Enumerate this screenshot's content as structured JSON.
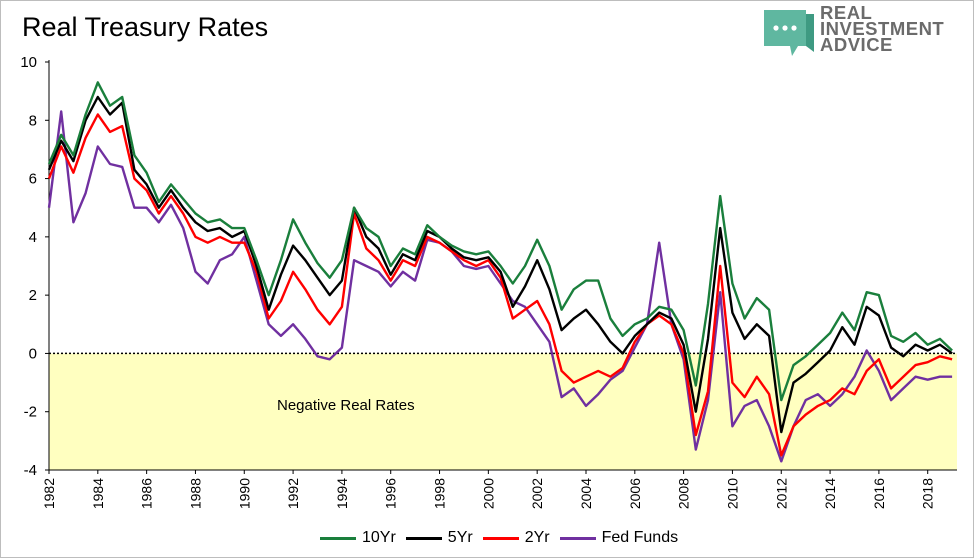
{
  "title": "Real Treasury Rates",
  "logo": {
    "lines": [
      "REAL",
      "INVESTMENT",
      "ADVICE"
    ],
    "icon": "chat-bubble-icon",
    "color": "#5fb7a0"
  },
  "annotation": "Negative Real Rates",
  "colors": {
    "10Yr": "#1a7f3c",
    "5Yr": "#000000",
    "2Yr": "#ff0000",
    "Fed Funds": "#7030a0",
    "negative_region": "#ffffc0"
  },
  "chart_data": {
    "type": "line",
    "title": "Real Treasury Rates",
    "xlabel": "",
    "ylabel": "",
    "xlim": [
      1982,
      2019.2
    ],
    "ylim": [
      -4,
      10
    ],
    "yticks": [
      "10",
      "8",
      "6",
      "4",
      "2",
      "0",
      "-2",
      "-4"
    ],
    "xticks": [
      "1982",
      "1984",
      "1986",
      "1988",
      "1990",
      "1992",
      "1994",
      "1996",
      "1998",
      "2000",
      "2002",
      "2004",
      "2006",
      "2008",
      "2010",
      "2012",
      "2014",
      "2016",
      "2018"
    ],
    "grid": false,
    "legend": "bottom",
    "x": [
      1982,
      1982.5,
      1983,
      1983.5,
      1984,
      1984.5,
      1985,
      1985.5,
      1986,
      1986.5,
      1987,
      1987.5,
      1988,
      1988.5,
      1989,
      1989.5,
      1990,
      1990.5,
      1991,
      1991.5,
      1992,
      1992.5,
      1993,
      1993.5,
      1994,
      1994.5,
      1995,
      1995.5,
      1996,
      1996.5,
      1997,
      1997.5,
      1998,
      1998.5,
      1999,
      1999.5,
      2000,
      2000.5,
      2001,
      2001.5,
      2002,
      2002.5,
      2003,
      2003.5,
      2004,
      2004.5,
      2005,
      2005.5,
      2006,
      2006.5,
      2007,
      2007.5,
      2008,
      2008.5,
      2009,
      2009.5,
      2010,
      2010.5,
      2011,
      2011.5,
      2012,
      2012.5,
      2013,
      2013.5,
      2014,
      2014.5,
      2015,
      2015.5,
      2016,
      2016.5,
      2017,
      2017.5,
      2018,
      2018.5,
      2019
    ],
    "series": [
      {
        "name": "10Yr",
        "values": [
          6.5,
          7.5,
          6.8,
          8.2,
          9.3,
          8.5,
          8.8,
          6.8,
          6.2,
          5.2,
          5.8,
          5.3,
          4.8,
          4.5,
          4.6,
          4.3,
          4.3,
          3.2,
          2.0,
          3.2,
          4.6,
          3.8,
          3.1,
          2.6,
          3.2,
          5.0,
          4.3,
          4.0,
          3.0,
          3.6,
          3.4,
          4.4,
          4.0,
          3.7,
          3.5,
          3.4,
          3.5,
          3.0,
          2.4,
          3.0,
          3.9,
          3.0,
          1.5,
          2.2,
          2.5,
          2.5,
          1.2,
          0.6,
          1.0,
          1.2,
          1.6,
          1.5,
          0.8,
          -1.1,
          1.7,
          5.4,
          2.4,
          1.2,
          1.9,
          1.5,
          -1.6,
          -0.4,
          -0.1,
          0.3,
          0.7,
          1.4,
          0.8,
          2.1,
          2.0,
          0.6,
          0.4,
          0.7,
          0.3,
          0.5,
          0.1
        ]
      },
      {
        "name": "5Yr",
        "values": [
          6.3,
          7.3,
          6.6,
          8.0,
          8.8,
          8.2,
          8.6,
          6.3,
          5.8,
          5.0,
          5.6,
          5.0,
          4.5,
          4.2,
          4.3,
          4.0,
          4.2,
          3.0,
          1.5,
          2.7,
          3.7,
          3.2,
          2.6,
          2.0,
          2.5,
          5.0,
          4.0,
          3.6,
          2.7,
          3.4,
          3.2,
          4.2,
          4.0,
          3.6,
          3.3,
          3.2,
          3.3,
          2.8,
          1.6,
          2.3,
          3.2,
          2.2,
          0.8,
          1.2,
          1.5,
          1.0,
          0.4,
          0.0,
          0.6,
          1.0,
          1.4,
          1.2,
          0.3,
          -2.0,
          0.5,
          4.3,
          1.4,
          0.5,
          1.0,
          0.6,
          -2.7,
          -1.0,
          -0.7,
          -0.3,
          0.1,
          0.9,
          0.3,
          1.6,
          1.3,
          0.2,
          -0.1,
          0.3,
          0.1,
          0.3,
          0.0
        ]
      },
      {
        "name": "2Yr",
        "values": [
          6.0,
          7.1,
          6.2,
          7.4,
          8.2,
          7.6,
          7.8,
          6.0,
          5.6,
          4.8,
          5.4,
          4.8,
          4.0,
          3.8,
          4.0,
          3.8,
          3.8,
          2.8,
          1.2,
          1.8,
          2.8,
          2.2,
          1.5,
          1.0,
          1.6,
          4.8,
          3.6,
          3.2,
          2.5,
          3.2,
          3.0,
          4.0,
          3.8,
          3.5,
          3.2,
          3.0,
          3.2,
          2.6,
          1.2,
          1.5,
          1.8,
          1.0,
          -0.6,
          -1.0,
          -0.8,
          -0.6,
          -0.8,
          -0.5,
          0.4,
          1.0,
          1.3,
          1.0,
          0.0,
          -2.8,
          -1.3,
          3.0,
          -1.0,
          -1.5,
          -0.8,
          -1.4,
          -3.5,
          -2.5,
          -2.1,
          -1.8,
          -1.6,
          -1.2,
          -1.4,
          -0.6,
          -0.2,
          -1.2,
          -0.8,
          -0.4,
          -0.3,
          -0.1,
          -0.2
        ]
      },
      {
        "name": "Fed Funds",
        "values": [
          5.0,
          8.3,
          4.5,
          5.5,
          7.1,
          6.5,
          6.4,
          5.0,
          5.0,
          4.5,
          5.1,
          4.3,
          2.8,
          2.4,
          3.2,
          3.4,
          4.0,
          2.5,
          1.0,
          0.6,
          1.0,
          0.5,
          -0.1,
          -0.2,
          0.2,
          3.2,
          3.0,
          2.8,
          2.3,
          2.8,
          2.5,
          3.9,
          3.8,
          3.5,
          3.0,
          2.9,
          3.0,
          2.4,
          1.8,
          1.6,
          1.0,
          0.4,
          -1.5,
          -1.2,
          -1.8,
          -1.4,
          -0.9,
          -0.6,
          0.2,
          1.0,
          3.8,
          1.0,
          -0.2,
          -3.3,
          -1.6,
          2.1,
          -2.5,
          -1.8,
          -1.6,
          -2.5,
          -3.7,
          -2.5,
          -1.6,
          -1.4,
          -1.8,
          -1.4,
          -0.8,
          0.1,
          -0.6,
          -1.6,
          -1.2,
          -0.8,
          -0.9,
          -0.8,
          -0.8
        ]
      }
    ]
  }
}
